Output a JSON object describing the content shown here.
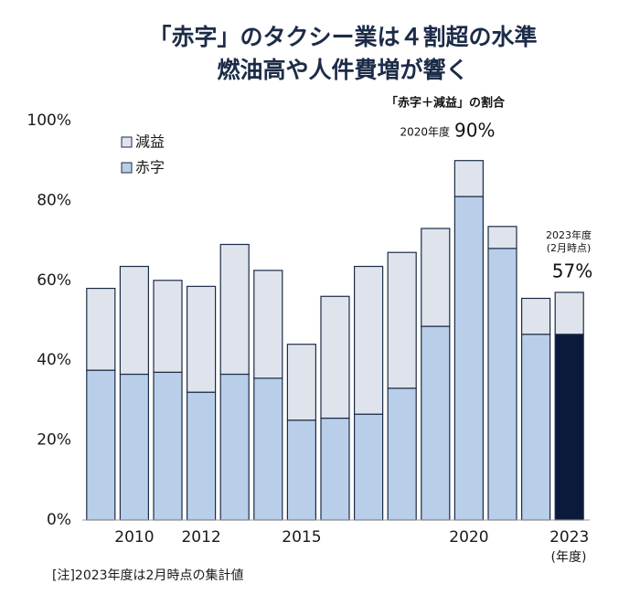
{
  "chart_data": {
    "type": "stacked_bar",
    "title": [
      "「赤字」のタクシー業は４割超の水準",
      "燃油高や人件費増が響く"
    ],
    "categories": [
      null,
      "2010",
      null,
      "2012",
      null,
      null,
      "2015",
      null,
      null,
      null,
      null,
      "2020",
      null,
      null,
      "2023"
    ],
    "x_unit_label": "(年度)",
    "series": [
      {
        "name": "赤字",
        "color": "#b9cfe9",
        "colors": [
          "#b9cfe9",
          "#b9cfe9",
          "#b9cfe9",
          "#b9cfe9",
          "#b9cfe9",
          "#b9cfe9",
          "#b9cfe9",
          "#b9cfe9",
          "#b9cfe9",
          "#b9cfe9",
          "#b9cfe9",
          "#b9cfe9",
          "#b9cfe9",
          "#b9cfe9",
          "#0b1a3b"
        ],
        "values": [
          37.5,
          36.5,
          37,
          32,
          36.5,
          35.5,
          25,
          25.5,
          26.5,
          33,
          48.5,
          81,
          68,
          46.5,
          46.5
        ]
      },
      {
        "name": "減益",
        "color": "#dfe4ec",
        "values": [
          20.5,
          27,
          23,
          26.5,
          32.5,
          27,
          19,
          30.5,
          37,
          34,
          24.5,
          9,
          5.5,
          9,
          10.5
        ]
      }
    ],
    "ylim": [
      0,
      100
    ],
    "yticks": [
      {
        "value": 0,
        "label": "0%"
      },
      {
        "value": 20,
        "label": "20%"
      },
      {
        "value": 40,
        "label": "40%"
      },
      {
        "value": 60,
        "label": "60%"
      },
      {
        "value": 80,
        "label": "80%"
      },
      {
        "value": 100,
        "label": "100%"
      }
    ],
    "legend": "top-left",
    "annotations": [
      "「赤字＋減益」の割合",
      "2020年度",
      "90%",
      "2023年度",
      "(2月時点)",
      "57%"
    ],
    "note": "[注]2023年度は2月時点の集計値"
  }
}
